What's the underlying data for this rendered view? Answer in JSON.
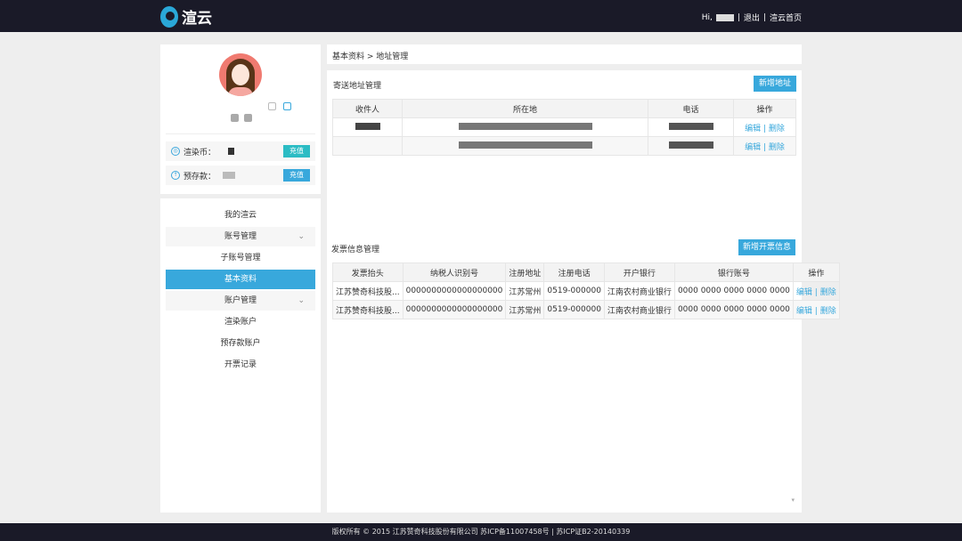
{
  "header": {
    "logo_text": "渲云",
    "greeting": "Hi,",
    "logout": "退出",
    "home": "渲云首页",
    "separator": "|"
  },
  "profile": {
    "render_coin_label": "渲染币：",
    "deposit_label": "预存款：",
    "recharge": "充值"
  },
  "menu": [
    {
      "label": "我的渲云",
      "style": "plain"
    },
    {
      "label": "账号管理",
      "style": "grey",
      "chevron": true
    },
    {
      "label": "子账号管理",
      "style": "plain"
    },
    {
      "label": "基本资料",
      "style": "active"
    },
    {
      "label": "账户管理",
      "style": "grey",
      "chevron": true
    },
    {
      "label": "渲染账户",
      "style": "plain"
    },
    {
      "label": "预存款账户",
      "style": "plain"
    },
    {
      "label": "开票记录",
      "style": "plain"
    }
  ],
  "breadcrumb": "基本资料 > 地址管理",
  "address": {
    "title": "寄送地址管理",
    "add_button": "新增地址",
    "columns": [
      "收件人",
      "所在地",
      "电话",
      "操作"
    ],
    "edit": "编辑",
    "delete": "删除",
    "divider": "|"
  },
  "invoice": {
    "title": "发票信息管理",
    "add_button": "新增开票信息",
    "columns": [
      "发票抬头",
      "纳税人识别号",
      "注册地址",
      "注册电话",
      "开户银行",
      "银行账号",
      "操作"
    ],
    "rows": [
      [
        "江苏赞奇科技股...",
        "0000000000000000000",
        "江苏常州",
        "0519-000000",
        "江南农村商业银行",
        "0000 0000 0000 0000 0000"
      ],
      [
        "江苏赞奇科技股...",
        "0000000000000000000",
        "江苏常州",
        "0519-000000",
        "江南农村商业银行",
        "0000 0000 0000 0000 0000"
      ]
    ],
    "edit": "编辑",
    "delete": "删除",
    "divider": "|"
  },
  "footer": "版权所有 © 2015 江苏赞奇科技股份有限公司 苏ICP备11007458号 | 苏ICP证B2-20140339",
  "colors": {
    "header_bg": "#1a1a28",
    "accent": "#38a8dc",
    "teal": "#2bbcc4"
  }
}
